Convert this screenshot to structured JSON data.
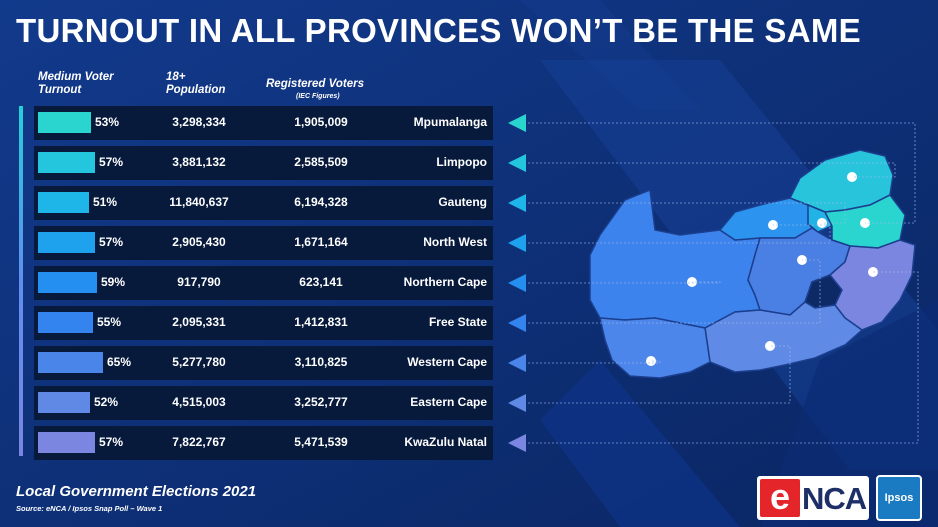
{
  "title": "TURNOUT IN ALL PROVINCES WON’T BE THE SAME",
  "columns": {
    "turnout": "Medium Voter Turnout",
    "population": "18+ Population",
    "registered": "Registered Voters",
    "registered_note": "(IEC Figures)"
  },
  "footer": {
    "title": "Local Government Elections 2021",
    "source": "Source: eNCA / Ipsos Snap Poll – Wave 1"
  },
  "logos": {
    "enca_e": "e",
    "enca_rest": "NCA",
    "ipsos": "Ipsos"
  },
  "colors": {
    "background": "#0d2f78",
    "row": "#081a3c",
    "bar_top": "#2ad4cf",
    "bar_bottom": "#7a86e0"
  },
  "chart_data": {
    "type": "table",
    "series_name": "Medium Voter Turnout",
    "provinces": [
      {
        "name": "Mpumalanga",
        "turnout": 53,
        "turnout_label": "53%",
        "population": "3,298,334",
        "registered": "1,905,009",
        "color": "#2ad4cf"
      },
      {
        "name": "Limpopo",
        "turnout": 57,
        "turnout_label": "57%",
        "population": "3,881,132",
        "registered": "2,585,509",
        "color": "#23c6dd"
      },
      {
        "name": "Gauteng",
        "turnout": 51,
        "turnout_label": "51%",
        "population": "11,840,637",
        "registered": "6,194,328",
        "color": "#1eb5e8"
      },
      {
        "name": "North West",
        "turnout": 57,
        "turnout_label": "57%",
        "population": "2,905,430",
        "registered": "1,671,164",
        "color": "#1fa2ee"
      },
      {
        "name": "Northern Cape",
        "turnout": 59,
        "turnout_label": "59%",
        "population": "917,790",
        "registered": "623,141",
        "color": "#248ff0"
      },
      {
        "name": "Free State",
        "turnout": 55,
        "turnout_label": "55%",
        "population": "2,095,331",
        "registered": "1,412,831",
        "color": "#3384ee"
      },
      {
        "name": "Western Cape",
        "turnout": 65,
        "turnout_label": "65%",
        "population": "5,277,780",
        "registered": "3,110,825",
        "color": "#4a86ea"
      },
      {
        "name": "Eastern Cape",
        "turnout": 52,
        "turnout_label": "52%",
        "population": "4,515,003",
        "registered": "3,252,777",
        "color": "#5f89e4"
      },
      {
        "name": "KwaZulu Natal",
        "turnout": 57,
        "turnout_label": "57%",
        "population": "7,822,767",
        "registered": "5,471,539",
        "color": "#7a86e0"
      }
    ]
  }
}
